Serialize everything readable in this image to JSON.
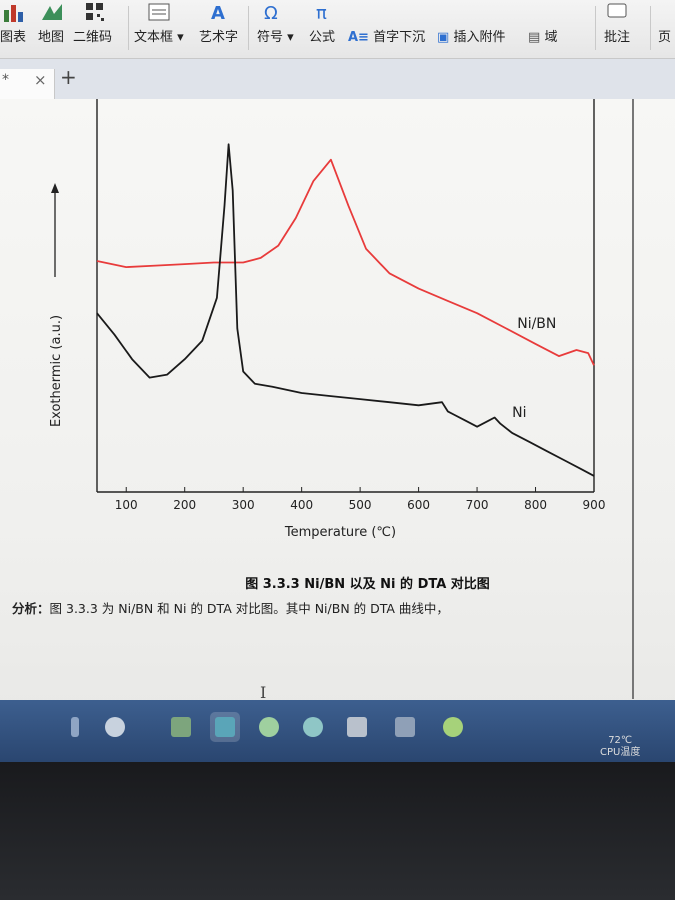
{
  "ribbon": {
    "items": [
      {
        "label": "图表"
      },
      {
        "label": "地图"
      },
      {
        "label": "二维码"
      },
      {
        "label": "文本框 ▾"
      },
      {
        "label": "艺术字"
      },
      {
        "label": "符号 ▾"
      },
      {
        "label": "公式"
      },
      {
        "label": "首字下沉"
      },
      {
        "label": "插入附件"
      },
      {
        "label": "域"
      },
      {
        "label": "批注"
      },
      {
        "label": "页"
      }
    ]
  },
  "tabs": {
    "current_mark": "*",
    "close": "×",
    "add": "+"
  },
  "chart_data": {
    "type": "line",
    "xlabel": "Temperature (℃)",
    "ylabel": "Exothermic (a.u.)",
    "xlim": [
      50,
      900
    ],
    "x_ticks": [
      100,
      200,
      300,
      400,
      500,
      600,
      700,
      800,
      900
    ],
    "y_ticks_labeled": false,
    "series": [
      {
        "name": "Ni/BN",
        "color": "#e83b3b",
        "x": [
          50,
          100,
          150,
          200,
          250,
          300,
          330,
          360,
          390,
          420,
          450,
          480,
          510,
          550,
          600,
          650,
          700,
          750,
          800,
          840,
          870,
          890,
          900
        ],
        "y": [
          0.62,
          0.6,
          0.605,
          0.61,
          0.615,
          0.615,
          0.63,
          0.67,
          0.76,
          0.88,
          0.95,
          0.8,
          0.66,
          0.58,
          0.53,
          0.49,
          0.45,
          0.4,
          0.35,
          0.31,
          0.33,
          0.32,
          0.28
        ]
      },
      {
        "name": "Ni",
        "color": "#1a1a1a",
        "x": [
          50,
          80,
          110,
          140,
          170,
          200,
          230,
          255,
          268,
          275,
          282,
          290,
          300,
          320,
          350,
          400,
          450,
          500,
          550,
          600,
          640,
          650,
          660,
          680,
          700,
          720,
          730,
          740,
          760,
          790,
          820,
          850,
          880,
          900
        ],
        "y": [
          0.45,
          0.38,
          0.3,
          0.24,
          0.25,
          0.3,
          0.36,
          0.5,
          0.8,
          1.0,
          0.85,
          0.4,
          0.26,
          0.22,
          0.21,
          0.19,
          0.18,
          0.17,
          0.16,
          0.15,
          0.16,
          0.13,
          0.12,
          0.1,
          0.08,
          0.1,
          0.11,
          0.09,
          0.06,
          0.03,
          0.0,
          -0.03,
          -0.06,
          -0.08
        ]
      }
    ],
    "annotations": [
      {
        "text": "Ni/BN",
        "series": "Ni/BN",
        "near_x": 820
      },
      {
        "text": "Ni",
        "series": "Ni",
        "near_x": 760
      }
    ]
  },
  "doc": {
    "caption": "图 3.3.3 Ni/BN 以及 Ni 的 DTA 对比图",
    "analysis_label": "分析：",
    "analysis_text": "图 3.3.3 为 Ni/BN 和 Ni 的 DTA 对比图。其中 Ni/BN 的 DTA 曲线中，",
    "ibeam": "I"
  },
  "tray": {
    "temp": "72℃",
    "temp_label": "CPU温度"
  }
}
